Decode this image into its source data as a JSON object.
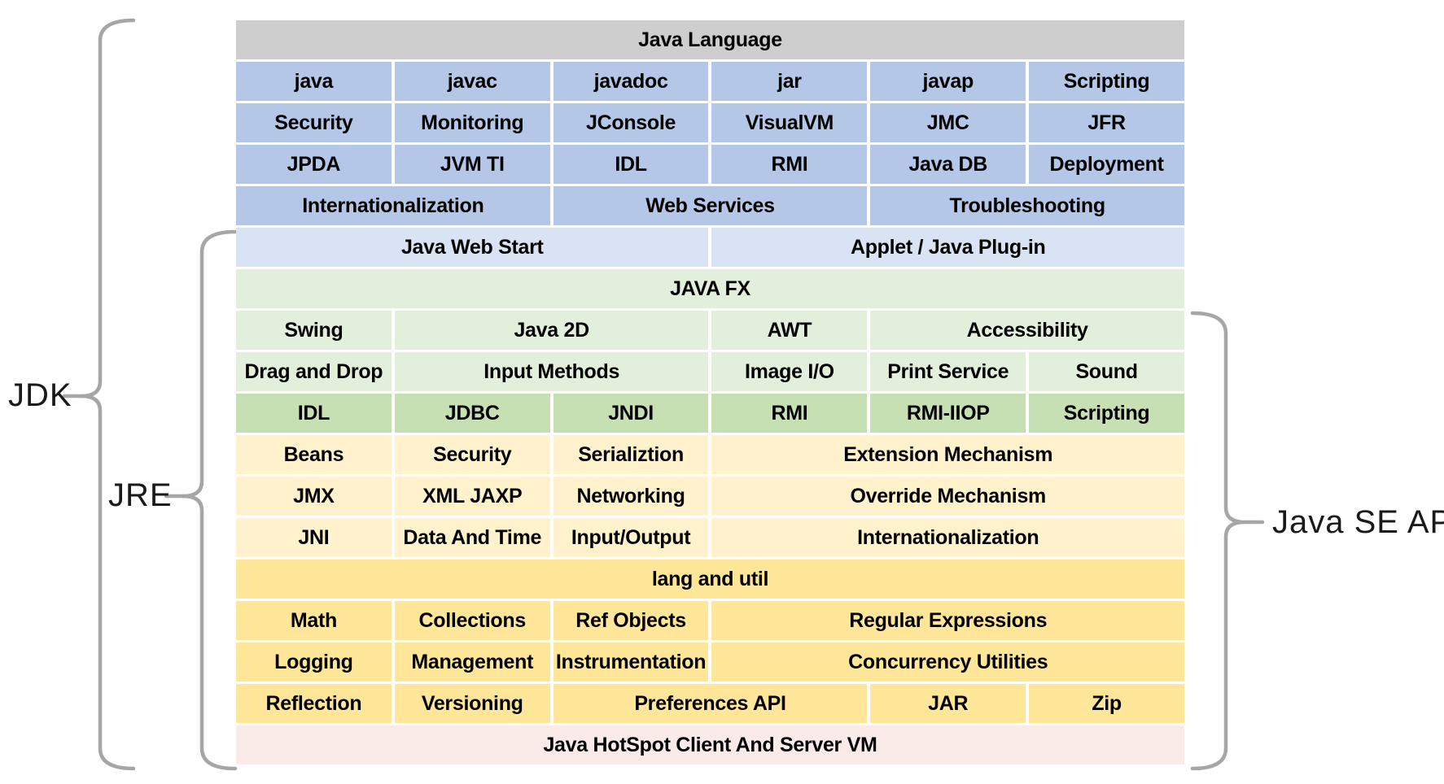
{
  "brackets": {
    "jdk_label": "JDK",
    "jre_label": "JRE",
    "java_se_api_label": "Java SE API"
  },
  "colors": {
    "background": "#ffffff",
    "gray": "#cecece",
    "blue": "#b4c7e7",
    "light_blue": "#dae3f3",
    "light_green": "#e2efda",
    "green": "#c6e0b4",
    "light_yellow": "#fff2cc",
    "yellow": "#ffe699",
    "pink": "#faeae8",
    "brace": "#a6a6a6",
    "text": "#000000",
    "label_text": "#1a1a1a"
  },
  "table": {
    "rows": [
      {
        "color": "gray",
        "cells": [
          {
            "label": "Java Language",
            "span": 6
          }
        ]
      },
      {
        "color": "blue",
        "cells": [
          {
            "label": "java",
            "span": 1
          },
          {
            "label": "javac",
            "span": 1
          },
          {
            "label": "javadoc",
            "span": 1
          },
          {
            "label": "jar",
            "span": 1
          },
          {
            "label": "javap",
            "span": 1
          },
          {
            "label": "Scripting",
            "span": 1
          }
        ]
      },
      {
        "color": "blue",
        "cells": [
          {
            "label": "Security",
            "span": 1
          },
          {
            "label": "Monitoring",
            "span": 1
          },
          {
            "label": "JConsole",
            "span": 1
          },
          {
            "label": "VisualVM",
            "span": 1
          },
          {
            "label": "JMC",
            "span": 1
          },
          {
            "label": "JFR",
            "span": 1
          }
        ]
      },
      {
        "color": "blue",
        "cells": [
          {
            "label": "JPDA",
            "span": 1
          },
          {
            "label": "JVM TI",
            "span": 1
          },
          {
            "label": "IDL",
            "span": 1
          },
          {
            "label": "RMI",
            "span": 1
          },
          {
            "label": "Java DB",
            "span": 1
          },
          {
            "label": "Deployment",
            "span": 1
          }
        ]
      },
      {
        "color": "blue",
        "cells": [
          {
            "label": "Internationalization",
            "span": 2
          },
          {
            "label": "Web Services",
            "span": 2
          },
          {
            "label": "Troubleshooting",
            "span": 2
          }
        ]
      },
      {
        "color": "light_blue",
        "cells": [
          {
            "label": "Java Web Start",
            "span": 3
          },
          {
            "label": "Applet / Java Plug-in",
            "span": 3
          }
        ]
      },
      {
        "color": "light_green",
        "cells": [
          {
            "label": "JAVA FX",
            "span": 6
          }
        ]
      },
      {
        "color": "light_green",
        "cells": [
          {
            "label": "Swing",
            "span": 1
          },
          {
            "label": "Java 2D",
            "span": 2
          },
          {
            "label": "AWT",
            "span": 1
          },
          {
            "label": "Accessibility",
            "span": 2
          }
        ]
      },
      {
        "color": "light_green",
        "cells": [
          {
            "label": "Drag and Drop",
            "span": 1
          },
          {
            "label": "Input Methods",
            "span": 2
          },
          {
            "label": "Image I/O",
            "span": 1
          },
          {
            "label": "Print Service",
            "span": 1
          },
          {
            "label": "Sound",
            "span": 1
          }
        ]
      },
      {
        "color": "green",
        "cells": [
          {
            "label": "IDL",
            "span": 1
          },
          {
            "label": "JDBC",
            "span": 1
          },
          {
            "label": "JNDI",
            "span": 1
          },
          {
            "label": "RMI",
            "span": 1
          },
          {
            "label": "RMI-IIOP",
            "span": 1
          },
          {
            "label": "Scripting",
            "span": 1
          }
        ]
      },
      {
        "color": "light_yellow",
        "cells": [
          {
            "label": "Beans",
            "span": 1
          },
          {
            "label": "Security",
            "span": 1
          },
          {
            "label": "Serializtion",
            "span": 1
          },
          {
            "label": "Extension Mechanism",
            "span": 3
          }
        ]
      },
      {
        "color": "light_yellow",
        "cells": [
          {
            "label": "JMX",
            "span": 1
          },
          {
            "label": "XML JAXP",
            "span": 1
          },
          {
            "label": "Networking",
            "span": 1
          },
          {
            "label": "Override Mechanism",
            "span": 3
          }
        ]
      },
      {
        "color": "light_yellow",
        "cells": [
          {
            "label": "JNI",
            "span": 1
          },
          {
            "label": "Data And Time",
            "span": 1
          },
          {
            "label": "Input/Output",
            "span": 1
          },
          {
            "label": "Internationalization",
            "span": 3
          }
        ]
      },
      {
        "color": "yellow",
        "cells": [
          {
            "label": "lang and util",
            "span": 6
          }
        ]
      },
      {
        "color": "yellow",
        "cells": [
          {
            "label": "Math",
            "span": 1
          },
          {
            "label": "Collections",
            "span": 1
          },
          {
            "label": "Ref Objects",
            "span": 1
          },
          {
            "label": "Regular Expressions",
            "span": 3
          }
        ]
      },
      {
        "color": "yellow",
        "cells": [
          {
            "label": "Logging",
            "span": 1
          },
          {
            "label": "Management",
            "span": 1
          },
          {
            "label": "Instrumentation",
            "span": 1
          },
          {
            "label": "Concurrency Utilities",
            "span": 3
          }
        ]
      },
      {
        "color": "yellow",
        "cells": [
          {
            "label": "Reflection",
            "span": 1
          },
          {
            "label": "Versioning",
            "span": 1
          },
          {
            "label": "Preferences API",
            "span": 2
          },
          {
            "label": "JAR",
            "span": 1
          },
          {
            "label": "Zip",
            "span": 1
          }
        ]
      },
      {
        "color": "pink",
        "cells": [
          {
            "label": "Java HotSpot Client And Server VM",
            "span": 6
          }
        ]
      }
    ]
  }
}
